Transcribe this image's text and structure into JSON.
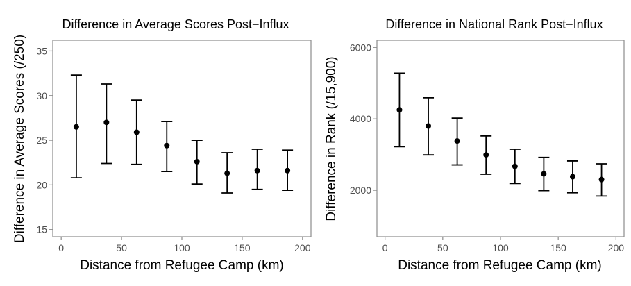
{
  "chart_data": [
    {
      "type": "scatter",
      "title": "Difference in Average Scores Post−Influx",
      "xlabel": "Distance from Refugee Camp (km)",
      "ylabel": "Difference in Average Scores (/250)",
      "xlim": [
        -7,
        207
      ],
      "ylim": [
        14.2,
        36.2
      ],
      "xticks": [
        0,
        50,
        100,
        150,
        200
      ],
      "yticks": [
        15,
        20,
        25,
        30,
        35
      ],
      "grid": false,
      "points": [
        {
          "x": 12.5,
          "y": 26.5,
          "low": 20.8,
          "high": 32.3
        },
        {
          "x": 37.5,
          "y": 27.0,
          "low": 22.4,
          "high": 31.3
        },
        {
          "x": 62.5,
          "y": 25.9,
          "low": 22.3,
          "high": 29.5
        },
        {
          "x": 87.5,
          "y": 24.4,
          "low": 21.5,
          "high": 27.1
        },
        {
          "x": 112.5,
          "y": 22.6,
          "low": 20.1,
          "high": 25.0
        },
        {
          "x": 137.5,
          "y": 21.3,
          "low": 19.1,
          "high": 23.6
        },
        {
          "x": 162.5,
          "y": 21.6,
          "low": 19.5,
          "high": 24.0
        },
        {
          "x": 187.5,
          "y": 21.6,
          "low": 19.4,
          "high": 23.9
        }
      ]
    },
    {
      "type": "scatter",
      "title": "Difference in National Rank Post−Influx",
      "xlabel": "Distance from Refugee Camp (km)",
      "ylabel": "Difference in Rank (/15,900)",
      "xlim": [
        -7,
        207
      ],
      "ylim": [
        700,
        6200
      ],
      "xticks": [
        0,
        50,
        100,
        150,
        200
      ],
      "yticks": [
        2000,
        4000,
        6000
      ],
      "grid": false,
      "points": [
        {
          "x": 12.5,
          "y": 4250,
          "low": 3220,
          "high": 5280
        },
        {
          "x": 37.5,
          "y": 3800,
          "low": 2990,
          "high": 4590
        },
        {
          "x": 62.5,
          "y": 3380,
          "low": 2710,
          "high": 4020
        },
        {
          "x": 87.5,
          "y": 2990,
          "low": 2450,
          "high": 3520
        },
        {
          "x": 112.5,
          "y": 2670,
          "low": 2190,
          "high": 3150
        },
        {
          "x": 137.5,
          "y": 2460,
          "low": 1990,
          "high": 2920
        },
        {
          "x": 162.5,
          "y": 2380,
          "low": 1930,
          "high": 2820
        },
        {
          "x": 187.5,
          "y": 2300,
          "low": 1840,
          "high": 2740
        }
      ]
    }
  ]
}
